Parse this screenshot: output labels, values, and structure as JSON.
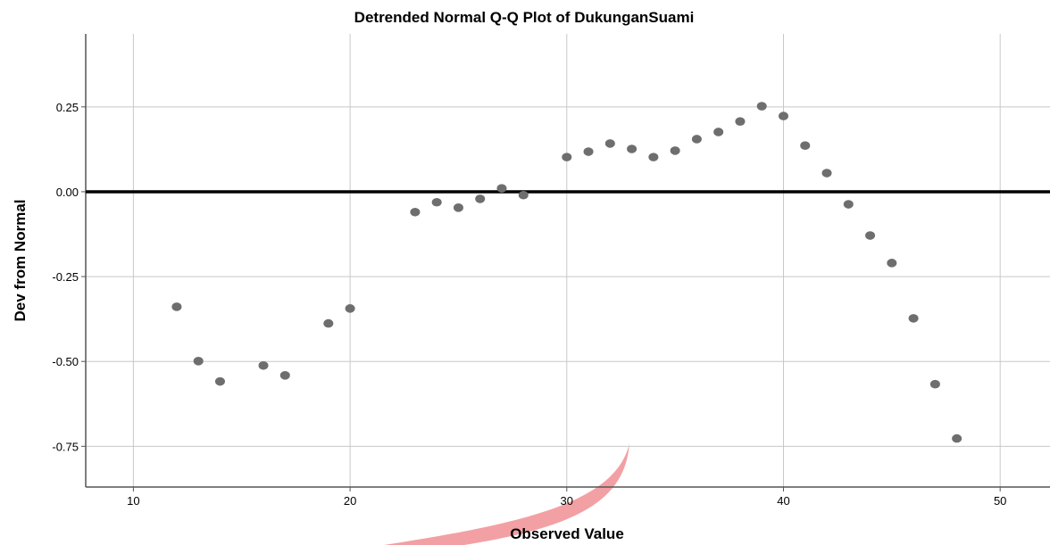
{
  "chart_data": {
    "type": "scatter",
    "title": "Detrended Normal Q-Q Plot of DukunganSuami",
    "x_label": "Observed Value",
    "y_label": "Dev from Normal",
    "x": [
      12,
      13,
      14,
      16,
      17,
      19,
      20,
      23,
      24,
      25,
      26,
      27,
      28,
      30,
      31,
      32,
      33,
      34,
      35,
      36,
      37,
      38,
      39,
      40,
      41,
      42,
      43,
      44,
      45,
      46,
      47,
      48
    ],
    "values": [
      -0.339,
      -0.499,
      -0.559,
      -0.512,
      -0.541,
      -0.388,
      -0.344,
      -0.06,
      -0.031,
      -0.047,
      -0.021,
      0.01,
      -0.01,
      0.102,
      0.118,
      0.142,
      0.126,
      0.102,
      0.121,
      0.155,
      0.176,
      0.207,
      0.252,
      0.223,
      0.136,
      0.055,
      -0.037,
      -0.129,
      -0.21,
      -0.373,
      -0.567,
      -0.727
    ],
    "color": "#6e6e6e",
    "reference_y": 0,
    "xlim": [
      7.8,
      52.3
    ],
    "ylim": [
      -0.87,
      0.465
    ],
    "xticks": [
      10,
      20,
      30,
      40,
      50
    ],
    "yticks": [
      0.25,
      {
        "value": 0,
        "label": "0.00"
      },
      -0.25,
      {
        "value": -0.5,
        "label": "-0.50"
      },
      -0.75
    ],
    "grid": true
  }
}
